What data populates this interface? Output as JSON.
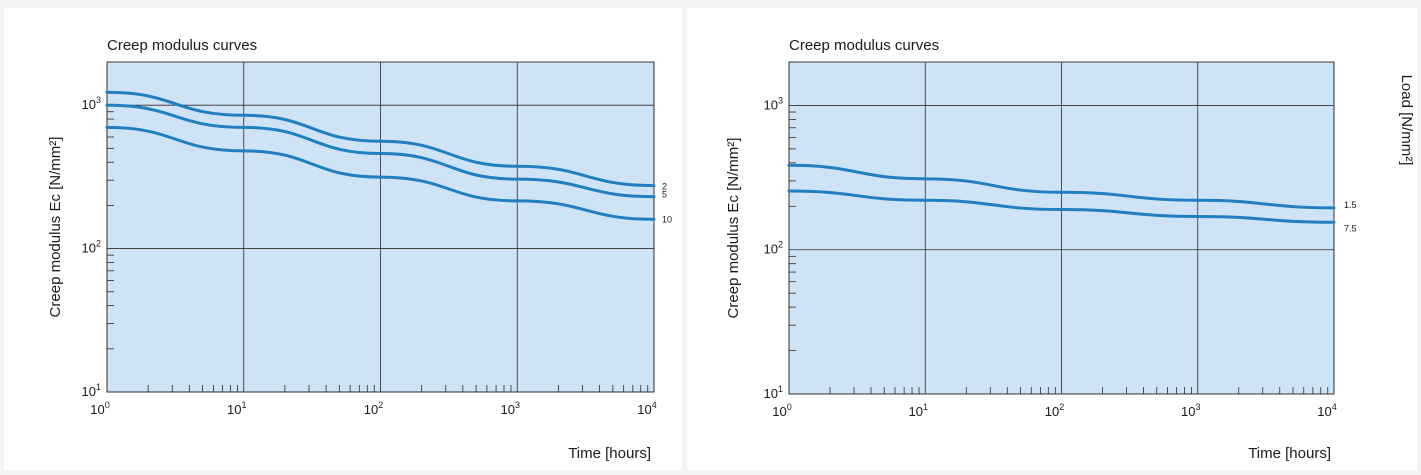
{
  "chart_data": [
    {
      "type": "line",
      "title": "Creep modulus curves",
      "xlabel": "Time [hours]",
      "ylabel": "Creep modulus Eᴄ [N/mm²]",
      "y2label": "",
      "xscale": "log",
      "yscale": "log",
      "xlim": [
        1,
        10000
      ],
      "ylim": [
        10,
        2000
      ],
      "grid": true,
      "x_ticks": [
        {
          "base": "10",
          "exp": "0"
        },
        {
          "base": "10",
          "exp": "1"
        },
        {
          "base": "10",
          "exp": "2"
        },
        {
          "base": "10",
          "exp": "3"
        },
        {
          "base": "10",
          "exp": "4"
        }
      ],
      "y_ticks": [
        {
          "value": 10,
          "base": "10",
          "exp": "1"
        },
        {
          "value": 100,
          "base": "10",
          "exp": "2"
        },
        {
          "value": 1000,
          "base": "10",
          "exp": "3"
        }
      ],
      "x": [
        1,
        10,
        100,
        1000,
        10000
      ],
      "series": [
        {
          "name": "2",
          "values": [
            1230,
            850,
            560,
            375,
            275
          ]
        },
        {
          "name": "5",
          "values": [
            1000,
            700,
            460,
            305,
            230
          ]
        },
        {
          "name": "10",
          "values": [
            700,
            480,
            315,
            215,
            160
          ]
        }
      ]
    },
    {
      "type": "line",
      "title": "Creep modulus curves",
      "xlabel": "Time [hours]",
      "ylabel": "Creep modulus Eᴄ [N/mm²]",
      "y2label": "Load [N/mm²]",
      "xscale": "log",
      "yscale": "log",
      "xlim": [
        1,
        10000
      ],
      "ylim": [
        10,
        2000
      ],
      "grid": true,
      "x_ticks": [
        {
          "base": "10",
          "exp": "0"
        },
        {
          "base": "10",
          "exp": "1"
        },
        {
          "base": "10",
          "exp": "2"
        },
        {
          "base": "10",
          "exp": "3"
        },
        {
          "base": "10",
          "exp": "4"
        }
      ],
      "y_ticks": [
        {
          "value": 10,
          "base": "10",
          "exp": "1"
        },
        {
          "value": 100,
          "base": "10",
          "exp": "2"
        },
        {
          "value": 1000,
          "base": "10",
          "exp": "3"
        }
      ],
      "x": [
        1,
        10,
        100,
        1000,
        10000
      ],
      "series": [
        {
          "name": "1.5",
          "values": [
            385,
            310,
            250,
            220,
            195
          ]
        },
        {
          "name": "7.5",
          "values": [
            255,
            220,
            190,
            170,
            155
          ]
        }
      ]
    }
  ]
}
